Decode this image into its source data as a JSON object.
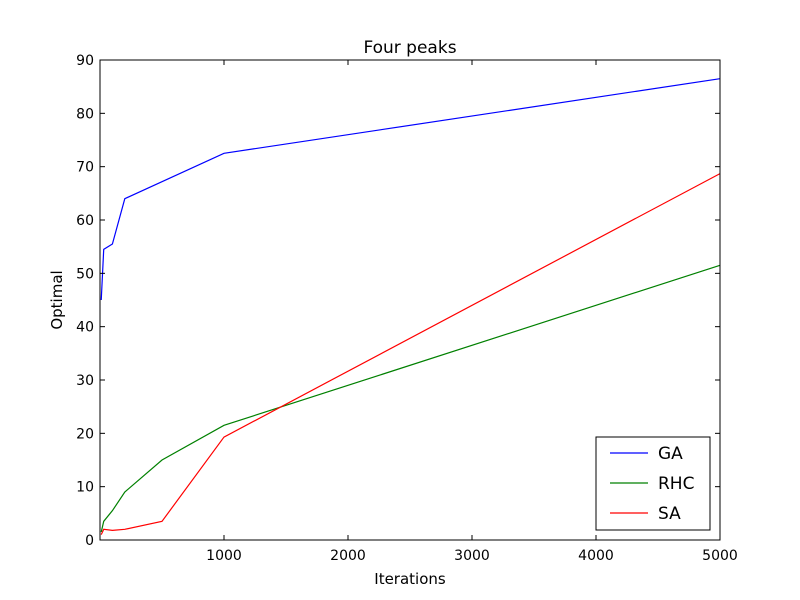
{
  "chart_data": {
    "type": "line",
    "title": "Four peaks",
    "xlabel": "Iterations",
    "ylabel": "Optimal",
    "xlim": [
      0,
      5000
    ],
    "ylim": [
      0,
      90
    ],
    "xticks": [
      1000,
      2000,
      3000,
      4000,
      5000
    ],
    "yticks": [
      0,
      10,
      20,
      30,
      40,
      50,
      60,
      70,
      80,
      90
    ],
    "grid": false,
    "legend_position": "lower-right",
    "series": [
      {
        "name": "GA",
        "color": "#0000ff",
        "x": [
          10,
          30,
          100,
          200,
          1000,
          5000
        ],
        "y": [
          45,
          54.5,
          55.5,
          64,
          72.5,
          86.5
        ]
      },
      {
        "name": "RHC",
        "color": "#008000",
        "x": [
          10,
          30,
          100,
          200,
          500,
          1000,
          5000
        ],
        "y": [
          1.5,
          3.5,
          5.5,
          9,
          15,
          21.5,
          51.5
        ]
      },
      {
        "name": "SA",
        "color": "#ff0000",
        "x": [
          10,
          30,
          100,
          200,
          500,
          1000,
          5000
        ],
        "y": [
          1,
          2,
          1.8,
          2,
          3.5,
          19.3,
          68.7
        ]
      }
    ]
  }
}
